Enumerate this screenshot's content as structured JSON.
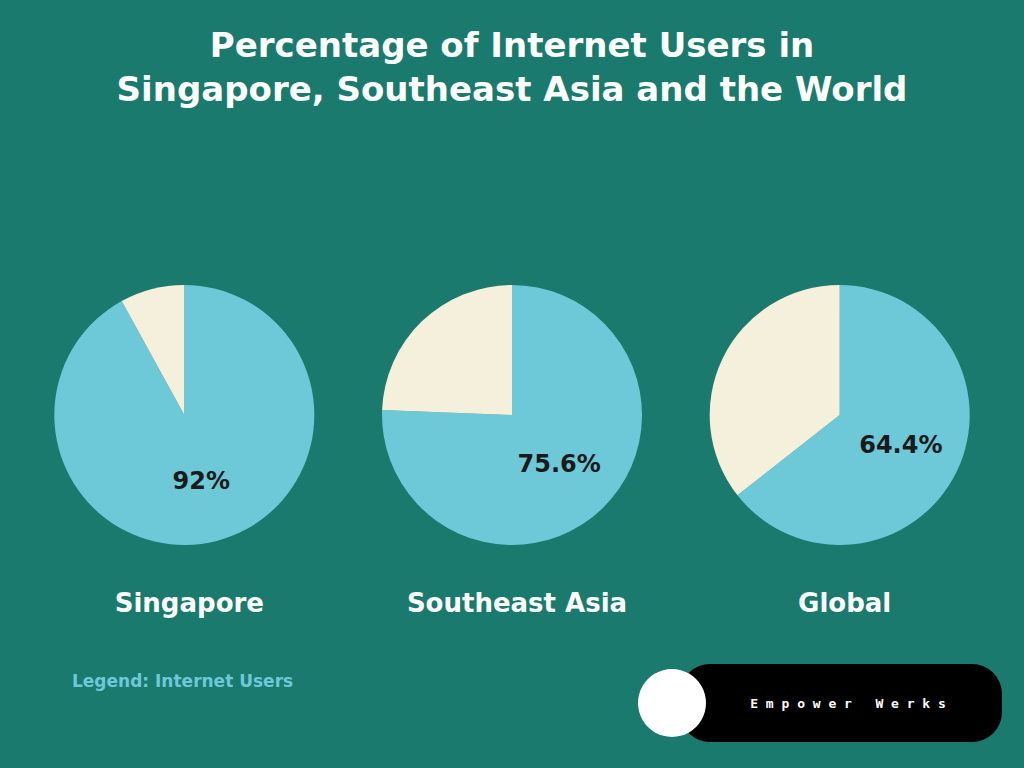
{
  "title": "Percentage of Internet Users in\nSingapore, Southeast Asia and the World",
  "annotations": [
    "Legend: Internet Users",
    "E m p o w e r   W e r k s"
  ],
  "chart_data": [
    {
      "type": "pie",
      "title": "Singapore",
      "values": [
        92.0,
        8.0
      ],
      "value_labels": [
        "92%",
        null
      ],
      "colors": [
        "#6dc8d8",
        "#f5f0dc"
      ],
      "data_labels": true
    },
    {
      "type": "pie",
      "title": "Southeast Asia",
      "values": [
        75.6,
        24.4
      ],
      "value_labels": [
        "75.6%",
        null
      ],
      "colors": [
        "#6dc8d8",
        "#f5f0dc"
      ],
      "data_labels": true
    },
    {
      "type": "pie",
      "title": "Global",
      "values": [
        64.4,
        35.6
      ],
      "value_labels": [
        "64.4%",
        null
      ],
      "colors": [
        "#6dc8d8",
        "#f5f0dc"
      ],
      "data_labels": true
    }
  ]
}
